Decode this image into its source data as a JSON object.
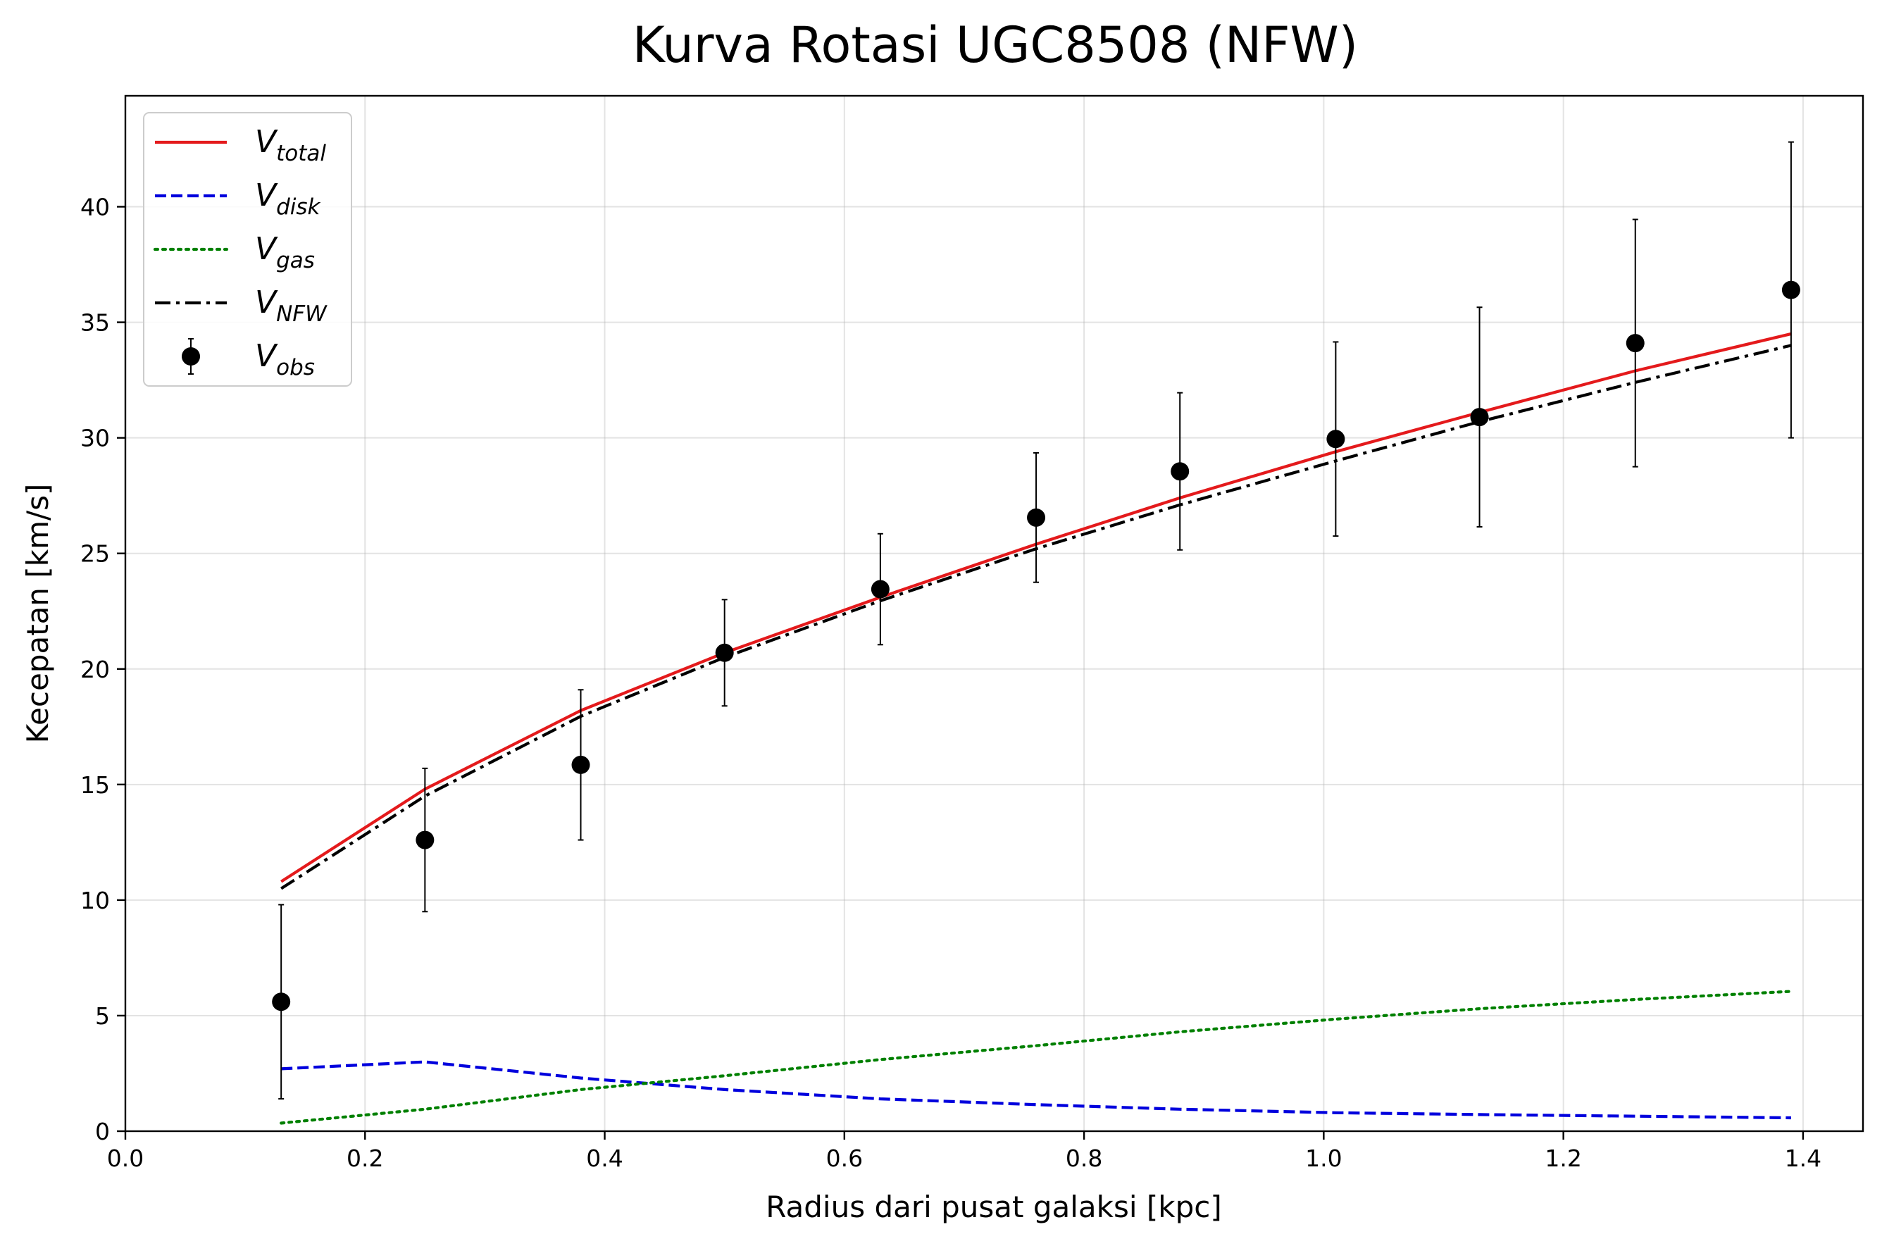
{
  "chart_data": {
    "type": "line",
    "title": "Kurva Rotasi UGC8508 (NFW)",
    "xlabel": "Radius dari pusat galaksi [kpc]",
    "ylabel": "Kecepatan [km/s]",
    "xlim": [
      0.0,
      1.45
    ],
    "ylim": [
      0,
      44.8
    ],
    "xticks": [
      0.0,
      0.2,
      0.4,
      0.6,
      0.8,
      1.0,
      1.2,
      1.4
    ],
    "xtick_labels": [
      "0.0",
      "0.2",
      "0.4",
      "0.6",
      "0.8",
      "1.0",
      "1.2",
      "1.4"
    ],
    "yticks": [
      0,
      5,
      10,
      15,
      20,
      25,
      30,
      35,
      40
    ],
    "ytick_labels": [
      "0",
      "5",
      "10",
      "15",
      "20",
      "25",
      "30",
      "35",
      "40"
    ],
    "grid": true,
    "legend_position": "top-left",
    "x": [
      0.13,
      0.25,
      0.38,
      0.5,
      0.63,
      0.76,
      0.88,
      1.01,
      1.13,
      1.26,
      1.39
    ],
    "series": [
      {
        "key": "total",
        "symbol": "V",
        "subscript": "total",
        "color": "#e41a1c",
        "style": "solid",
        "values": [
          10.8,
          14.8,
          18.2,
          20.7,
          23.1,
          25.4,
          27.4,
          29.4,
          31.1,
          32.9,
          34.5
        ]
      },
      {
        "key": "disk",
        "symbol": "V",
        "subscript": "disk",
        "color": "#0000dd",
        "style": "dashed",
        "values": [
          2.7,
          3.0,
          2.3,
          1.8,
          1.4,
          1.15,
          0.95,
          0.8,
          0.72,
          0.65,
          0.58
        ]
      },
      {
        "key": "gas",
        "symbol": "V",
        "subscript": "gas",
        "color": "#008000",
        "style": "dotted",
        "values": [
          0.35,
          0.95,
          1.8,
          2.4,
          3.1,
          3.7,
          4.3,
          4.85,
          5.3,
          5.7,
          6.05
        ]
      },
      {
        "key": "nfw",
        "symbol": "V",
        "subscript": "NFW",
        "color": "#000000",
        "style": "dashdot",
        "values": [
          10.5,
          14.5,
          17.95,
          20.5,
          22.95,
          25.2,
          27.1,
          29.0,
          30.7,
          32.4,
          34.0
        ]
      }
    ],
    "observed": {
      "symbol": "V",
      "subscript": "obs",
      "color": "#000000",
      "values": [
        5.6,
        12.6,
        15.85,
        20.7,
        23.45,
        26.55,
        28.55,
        29.95,
        30.9,
        34.1,
        36.4
      ],
      "errors": [
        4.2,
        3.1,
        3.25,
        2.3,
        2.4,
        2.8,
        3.4,
        4.2,
        4.75,
        5.35,
        6.4
      ]
    }
  }
}
